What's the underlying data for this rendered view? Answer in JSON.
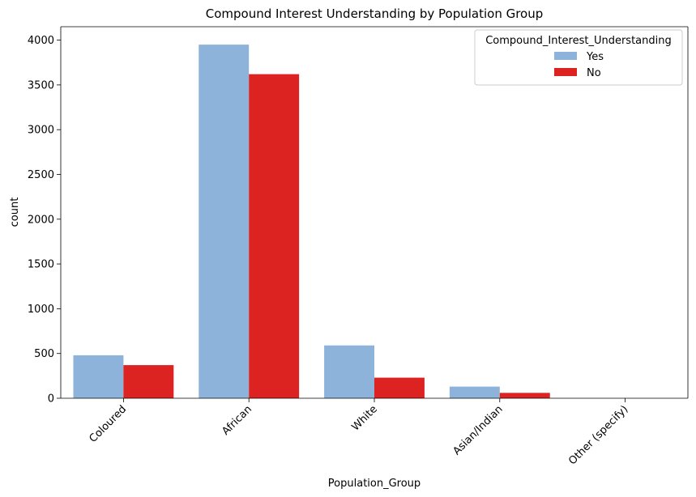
{
  "chart_data": {
    "type": "bar",
    "title": "Compound Interest Understanding by Population Group",
    "xlabel": "Population_Group",
    "ylabel": "count",
    "categories": [
      "Coloured",
      "African",
      "White",
      "Asian/Indian",
      "Other (specify)"
    ],
    "series": [
      {
        "name": "Yes",
        "color": "#8db3da",
        "values": [
          480,
          3950,
          590,
          130,
          0
        ]
      },
      {
        "name": "No",
        "color": "#dd2222",
        "values": [
          370,
          3620,
          230,
          60,
          0
        ]
      }
    ],
    "ylim": [
      0,
      4150
    ],
    "yticks": [
      0,
      500,
      1000,
      1500,
      2000,
      2500,
      3000,
      3500,
      4000
    ],
    "grid": false,
    "legend": {
      "title": "Compound_Interest_Understanding",
      "placement": "top-right"
    }
  }
}
